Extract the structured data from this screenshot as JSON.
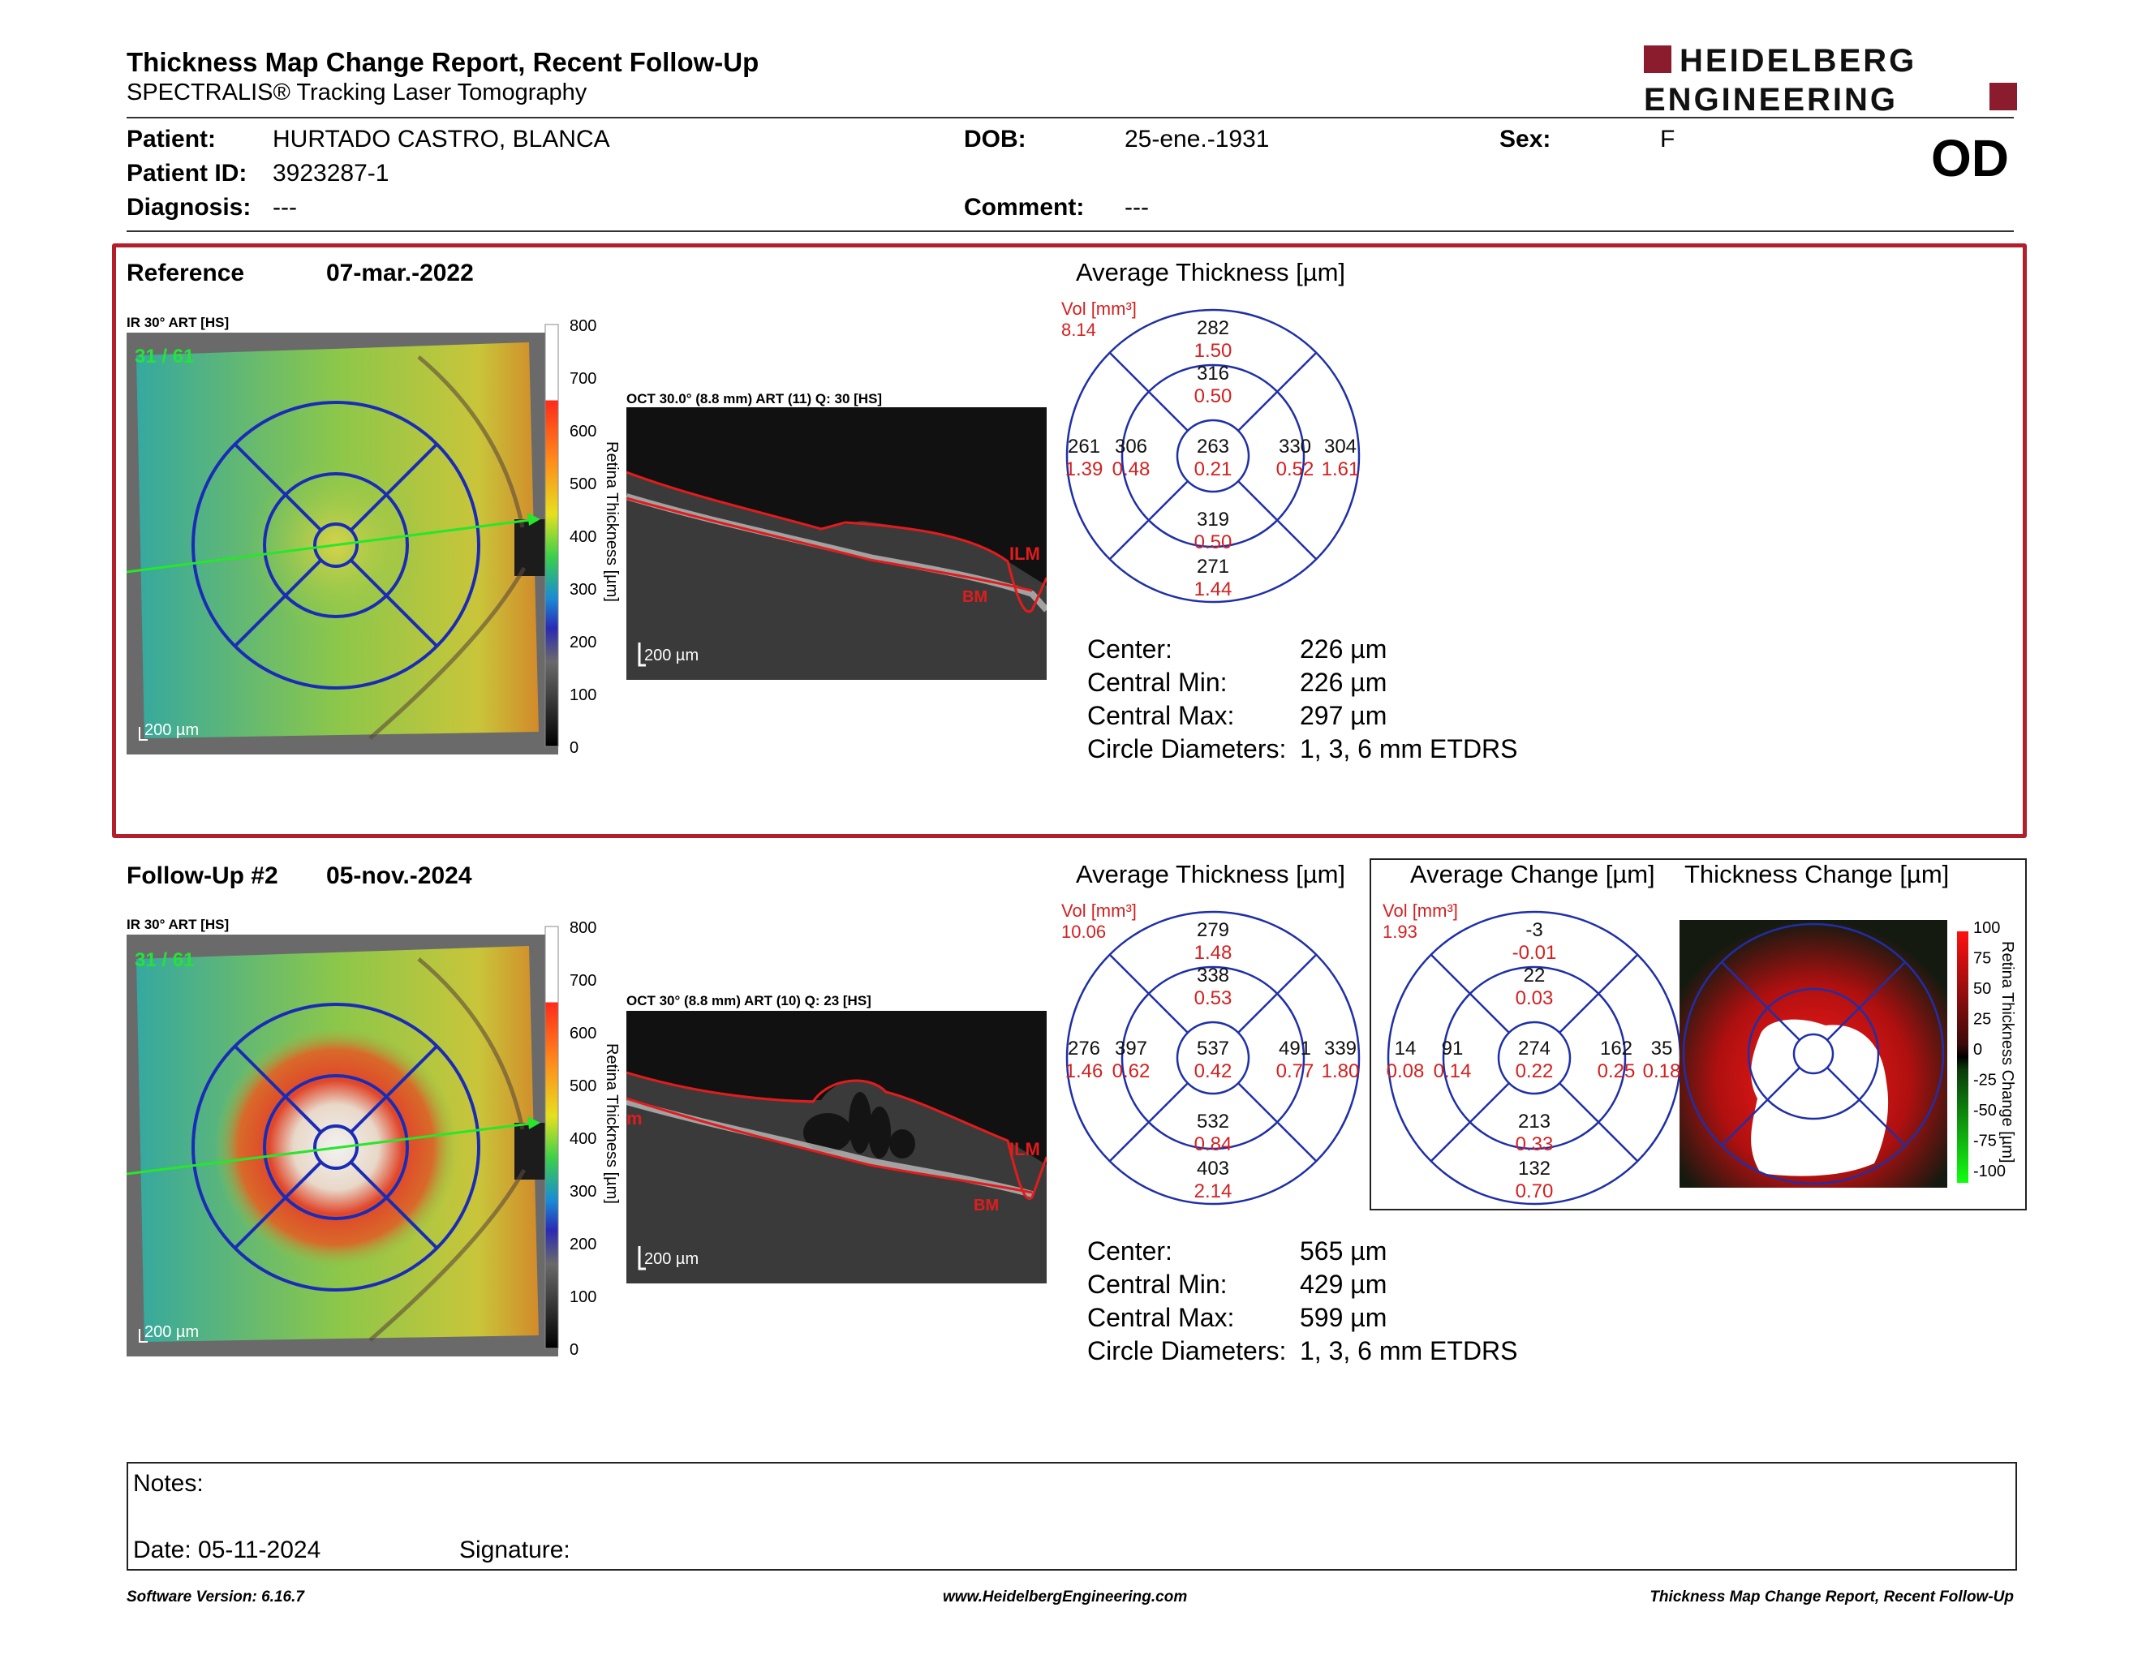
{
  "header": {
    "title": "Thickness Map Change Report, Recent Follow-Up",
    "subtitle": "SPECTRALIS® Tracking Laser Tomography",
    "logo_line1": "HEIDELBERG",
    "logo_line2": "ENGINEERING",
    "eye": "OD"
  },
  "patient": {
    "patient_label": "Patient:",
    "patient_value": "HURTADO CASTRO, BLANCA",
    "dob_label": "DOB:",
    "dob_value": "25-ene.-1931",
    "sex_label": "Sex:",
    "sex_value": "F",
    "id_label": "Patient ID:",
    "id_value": "3923287-1",
    "diagnosis_label": "Diagnosis:",
    "diagnosis_value": "---",
    "comment_label": "Comment:",
    "comment_value": "---"
  },
  "reference": {
    "label": "Reference",
    "date": "07-mar.-2022",
    "ir_label": "IR 30° ART [HS]",
    "frame": "31 / 61",
    "scale": "200 µm",
    "oct_label": "OCT 30.0° (8.8 mm) ART (11) Q: 30 [HS]",
    "oct_scale": "200 µm",
    "ilm": "ILM",
    "bm": "BM",
    "chart_title": "Average Thickness [µm]",
    "vol_label": "Vol [mm³]",
    "vol_value": "8.14",
    "grid": {
      "outer_top": [
        "282",
        "1.50"
      ],
      "inner_top": [
        "316",
        "0.50"
      ],
      "outer_left": [
        "261",
        "1.39"
      ],
      "inner_left": [
        "306",
        "0.48"
      ],
      "center": [
        "263",
        "0.21"
      ],
      "inner_right": [
        "330",
        "0.52"
      ],
      "outer_right": [
        "304",
        "1.61"
      ],
      "inner_bottom": [
        "319",
        "0.50"
      ],
      "outer_bottom": [
        "271",
        "1.44"
      ]
    },
    "stats": [
      {
        "label": "Center:",
        "value": "226 µm"
      },
      {
        "label": "Central Min:",
        "value": "226 µm"
      },
      {
        "label": "Central Max:",
        "value": "297 µm"
      },
      {
        "label": "Circle Diameters:",
        "value": "1, 3, 6 mm ETDRS"
      }
    ]
  },
  "followup": {
    "label": "Follow-Up #2",
    "date": "05-nov.-2024",
    "ir_label": "IR 30° ART [HS]",
    "frame": "31 / 61",
    "scale": "200 µm",
    "oct_label": "OCT 30° (8.8 mm) ART (10) Q: 23 [HS]",
    "oct_scale": "200 µm",
    "ilm": "ILM",
    "bm": "BM",
    "edge_fragment": "m",
    "chart_title": "Average Thickness [µm]",
    "vol_label": "Vol [mm³]",
    "vol_value": "10.06",
    "grid": {
      "outer_top": [
        "279",
        "1.48"
      ],
      "inner_top": [
        "338",
        "0.53"
      ],
      "outer_left": [
        "276",
        "1.46"
      ],
      "inner_left": [
        "397",
        "0.62"
      ],
      "center": [
        "537",
        "0.42"
      ],
      "inner_right": [
        "491",
        "0.77"
      ],
      "outer_right": [
        "339",
        "1.80"
      ],
      "inner_bottom": [
        "532",
        "0.84"
      ],
      "outer_bottom": [
        "403",
        "2.14"
      ]
    },
    "stats": [
      {
        "label": "Center:",
        "value": "565 µm"
      },
      {
        "label": "Central Min:",
        "value": "429 µm"
      },
      {
        "label": "Central Max:",
        "value": "599 µm"
      },
      {
        "label": "Circle Diameters:",
        "value": "1, 3, 6 mm ETDRS"
      }
    ]
  },
  "change": {
    "chart_title": "Average Change [µm]",
    "map_title": "Thickness Change [µm]",
    "vol_label": "Vol [mm³]",
    "vol_value": "1.93",
    "grid": {
      "outer_top": [
        "-3",
        "-0.01"
      ],
      "inner_top": [
        "22",
        "0.03"
      ],
      "outer_left": [
        "14",
        "0.08"
      ],
      "inner_left": [
        "91",
        "0.14"
      ],
      "center": [
        "274",
        "0.22"
      ],
      "inner_right": [
        "162",
        "0.25"
      ],
      "outer_right": [
        "35",
        "0.18"
      ],
      "inner_bottom": [
        "213",
        "0.33"
      ],
      "outer_bottom": [
        "132",
        "0.70"
      ]
    },
    "scale_ticks": [
      "100",
      "75",
      "50",
      "25",
      "0",
      "-25",
      "-50",
      "-75",
      "-100"
    ],
    "scale_label": "Retina Thickness Change [µm]"
  },
  "thickness_scale": {
    "ticks": [
      "800",
      "700",
      "600",
      "500",
      "400",
      "300",
      "200",
      "100",
      "0"
    ],
    "label": "Retina Thickness [µm]"
  },
  "notes": {
    "notes_label": "Notes:",
    "date_label": "Date: 05-11-2024",
    "signature_label": "Signature:"
  },
  "footer": {
    "left": "Software Version: 6.16.7",
    "center": "www.HeidelbergEngineering.com",
    "right": "Thickness Map Change Report, Recent Follow-Up"
  },
  "colors": {
    "accent_red": "#b21f2a",
    "grid_blue": "#1f2fa8",
    "value_red": "#d42020"
  }
}
